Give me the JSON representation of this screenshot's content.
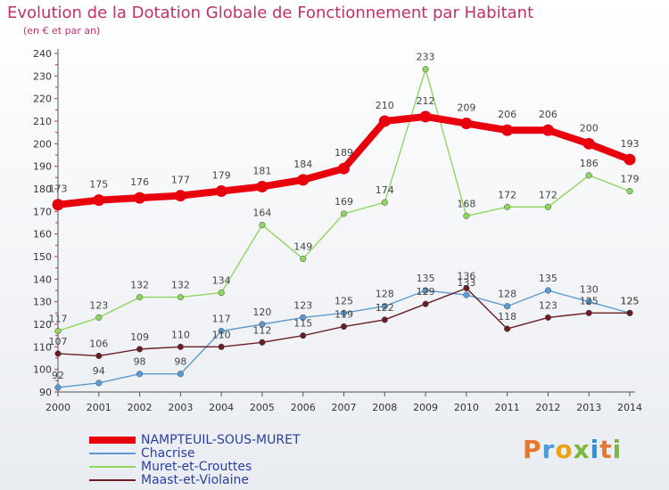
{
  "title": "Evolution de la Dotation Globale de Fonctionnement par Habitant",
  "subtitle": "(en € et par an)",
  "logo": "Proxiti",
  "chart_data": {
    "type": "line",
    "x": [
      "2000",
      "2001",
      "2002",
      "2003",
      "2004",
      "2005",
      "2006",
      "2007",
      "2008",
      "2009",
      "2010",
      "2011",
      "2012",
      "2013",
      "2014"
    ],
    "ylim": [
      90,
      240
    ],
    "yticks": [
      90,
      100,
      110,
      120,
      130,
      140,
      150,
      160,
      170,
      180,
      190,
      200,
      210,
      220,
      230,
      240
    ],
    "grid": false,
    "legend_position": "bottom-left",
    "series": [
      {
        "name": "NAMPTEUIL-SOUS-MURET",
        "color": "#e8000c",
        "values": [
          173,
          175,
          176,
          177,
          179,
          181,
          184,
          189,
          210,
          212,
          209,
          206,
          206,
          200,
          193
        ]
      },
      {
        "name": "Chacrise",
        "color": "#5b9bd1",
        "values": [
          92,
          94,
          98,
          98,
          117,
          120,
          123,
          125,
          128,
          135,
          133,
          128,
          135,
          130,
          125
        ]
      },
      {
        "name": "Muret-et-Crouttes",
        "color": "#8fd65f",
        "values": [
          117,
          123,
          132,
          132,
          134,
          164,
          149,
          169,
          174,
          233,
          168,
          172,
          172,
          186,
          179
        ]
      },
      {
        "name": "Maast-et-Violaine",
        "color": "#6b1d25",
        "values": [
          107,
          106,
          109,
          110,
          110,
          112,
          115,
          119,
          122,
          129,
          136,
          118,
          123,
          125,
          125
        ]
      }
    ]
  }
}
